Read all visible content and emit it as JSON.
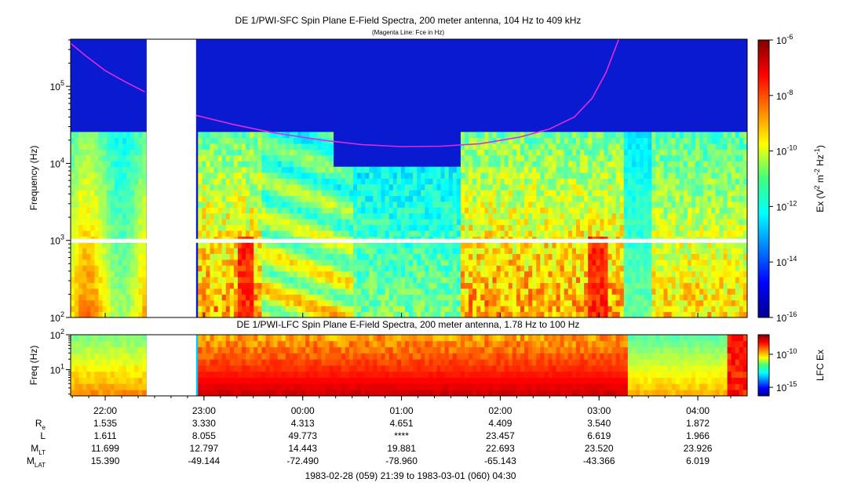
{
  "chart_data": [
    {
      "type": "heatmap",
      "title": "DE 1/PWI-SFC  Spin Plane E-Field Spectra, 200 meter antenna, 104 Hz to 409 kHz",
      "subtitle": "(Magenta Line: Fce in Hz)",
      "ylabel": "Frequency (Hz)",
      "yscale": "log",
      "ylim": [
        100,
        409000
      ],
      "y_ticks": [
        {
          "value": 100,
          "base": "10",
          "exp": "2"
        },
        {
          "value": 1000,
          "base": "10",
          "exp": "3"
        },
        {
          "value": 10000,
          "base": "10",
          "exp": "4"
        },
        {
          "value": 100000,
          "base": "10",
          "exp": "5"
        }
      ],
      "colorbar": {
        "label_prefix": "Ex (V",
        "label_parts": [
          "Ex (V",
          "2",
          " m",
          "-2",
          " Hz",
          "-1",
          ")"
        ],
        "scale": "log",
        "range": [
          1e-16,
          1e-06
        ],
        "ticks": [
          {
            "value": 1e-06,
            "base": "10",
            "exp": "-6"
          },
          {
            "value": 1e-08,
            "base": "10",
            "exp": "-8"
          },
          {
            "value": 1e-10,
            "base": "10",
            "exp": "-10"
          },
          {
            "value": 1e-12,
            "base": "10",
            "exp": "-12"
          },
          {
            "value": 1e-14,
            "base": "10",
            "exp": "-14"
          },
          {
            "value": 1e-16,
            "base": "10",
            "exp": "-16"
          }
        ]
      },
      "data_gap_ut_hours": [
        22.42,
        22.92
      ],
      "fce_line": {
        "color": "#e02ce0",
        "series_1": {
          "ut": [
            21.6,
            21.8,
            22.0,
            22.2,
            22.4
          ],
          "hz": [
            409000,
            250000,
            160000,
            115000,
            85000
          ]
        },
        "series_2": {
          "ut": [
            22.92,
            23.3,
            23.7,
            24.2,
            24.6,
            25.0,
            25.4,
            25.8,
            26.2,
            26.5,
            26.75,
            26.93,
            27.07,
            27.2
          ],
          "hz": [
            42000,
            32000,
            25000,
            20000,
            17500,
            16500,
            16700,
            18000,
            22000,
            28000,
            40000,
            70000,
            150000,
            409000
          ]
        }
      }
    },
    {
      "type": "heatmap",
      "title": "DE 1/PWI-LFC  Spin Plane E-Field Spectra, 200 meter antenna, 1.78 Hz to 100 Hz",
      "ylabel": "Freq (Hz)",
      "yscale": "log",
      "ylim": [
        1.78,
        100
      ],
      "y_ticks": [
        {
          "value": 10,
          "base": "10",
          "exp": "1"
        },
        {
          "value": 100,
          "base": "10",
          "exp": "2"
        }
      ],
      "colorbar": {
        "label": "LFC Ex",
        "scale": "log",
        "ticks": [
          {
            "value": 1e-10,
            "base": "10",
            "exp": "-10"
          },
          {
            "value": 1e-15,
            "base": "10",
            "exp": "-15"
          }
        ]
      },
      "data_gap_ut_hours": [
        22.42,
        22.92
      ]
    }
  ],
  "time_axis": {
    "start_ut_hours": 21.65,
    "end_ut_hours": 28.5,
    "ticks": [
      {
        "ut": 22,
        "label": "22:00"
      },
      {
        "ut": 23,
        "label": "23:00"
      },
      {
        "ut": 24,
        "label": "00:00"
      },
      {
        "ut": 25,
        "label": "01:00"
      },
      {
        "ut": 26,
        "label": "02:00"
      },
      {
        "ut": 27,
        "label": "03:00"
      },
      {
        "ut": 28,
        "label": "04:00"
      }
    ]
  },
  "ephemeris": {
    "rows": [
      {
        "label": "R",
        "sub": "e",
        "values": [
          "1.535",
          "3.330",
          "4.313",
          "4.651",
          "4.409",
          "3.540",
          "1.872"
        ]
      },
      {
        "label": "L",
        "sub": "",
        "values": [
          "1.611",
          "8.055",
          "49.773",
          "****",
          "23.457",
          "6.619",
          "1.966"
        ]
      },
      {
        "label": "M",
        "sub": "LT",
        "values": [
          "11.699",
          "12.797",
          "14.443",
          "19.881",
          "22.693",
          "23.520",
          "23.926"
        ]
      },
      {
        "label": "M",
        "sub": "LAT",
        "values": [
          "15.390",
          "-49.144",
          "-72.490",
          "-78.960",
          "-65.143",
          "-43.366",
          "6.019"
        ]
      }
    ],
    "time_range": "1983-02-28 (059) 21:39 to 1983-03-01 (060) 04:30"
  }
}
